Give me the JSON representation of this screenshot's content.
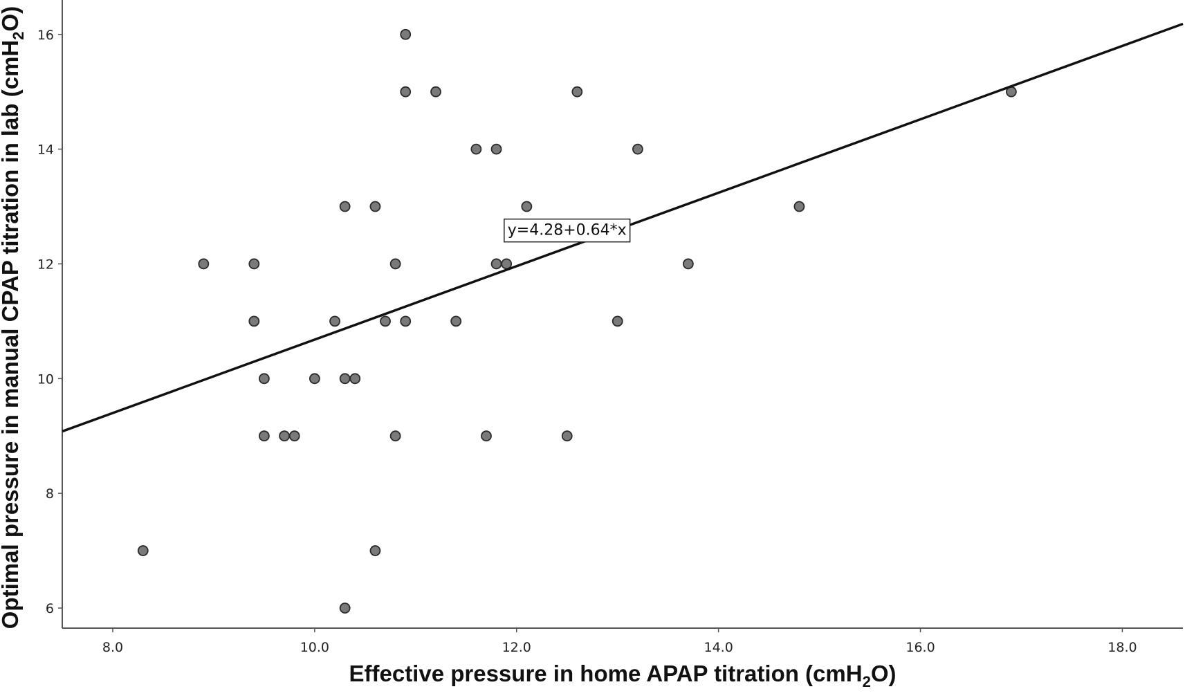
{
  "chart_data": {
    "type": "scatter",
    "title": "",
    "xlabel": {
      "prefix": "Effective pressure in home APAP titration (cmH",
      "subscript": "2",
      "suffix": "O)"
    },
    "ylabel": {
      "prefix": "Optimal pressure in manual CPAP titration in lab (cmH",
      "subscript": "2",
      "suffix": "O)"
    },
    "xlim": [
      7.5,
      18.6
    ],
    "ylim": [
      5.65,
      16.6
    ],
    "x_ticks": [
      8.0,
      10.0,
      12.0,
      14.0,
      16.0,
      18.0
    ],
    "x_tick_labels": [
      "8.0",
      "10.0",
      "12.0",
      "14.0",
      "16.0",
      "18.0"
    ],
    "y_ticks": [
      6,
      8,
      10,
      12,
      14,
      16
    ],
    "y_tick_labels": [
      "6",
      "8",
      "10",
      "12",
      "14",
      "16"
    ],
    "grid": false,
    "series": [
      {
        "points": [
          [
            8.3,
            7
          ],
          [
            8.9,
            12
          ],
          [
            9.4,
            12
          ],
          [
            9.4,
            11
          ],
          [
            9.5,
            10
          ],
          [
            9.5,
            9
          ],
          [
            9.7,
            9
          ],
          [
            9.8,
            9
          ],
          [
            10.0,
            10
          ],
          [
            10.2,
            11
          ],
          [
            10.3,
            13
          ],
          [
            10.3,
            10
          ],
          [
            10.4,
            10
          ],
          [
            10.3,
            6
          ],
          [
            10.6,
            13
          ],
          [
            10.6,
            7
          ],
          [
            10.7,
            11
          ],
          [
            10.8,
            12
          ],
          [
            10.8,
            9
          ],
          [
            10.9,
            16
          ],
          [
            10.9,
            15
          ],
          [
            10.9,
            11
          ],
          [
            11.2,
            15
          ],
          [
            11.4,
            11
          ],
          [
            11.6,
            14
          ],
          [
            11.7,
            9
          ],
          [
            11.8,
            14
          ],
          [
            11.8,
            12
          ],
          [
            11.9,
            12
          ],
          [
            12.1,
            13
          ],
          [
            12.5,
            9
          ],
          [
            12.6,
            15
          ],
          [
            13.0,
            11
          ],
          [
            13.2,
            14
          ],
          [
            13.7,
            12
          ],
          [
            14.8,
            13
          ],
          [
            16.9,
            15
          ]
        ]
      }
    ],
    "fit_line": {
      "intercept": 4.28,
      "slope": 0.64,
      "label": "y=4.28+0.64*x",
      "label_anchor": [
        12.5,
        12.6
      ]
    },
    "colors": {
      "point_fill": "#7a7a7a",
      "point_stroke": "#2b2b2b",
      "line": "#111111",
      "axis": "#555555"
    }
  }
}
